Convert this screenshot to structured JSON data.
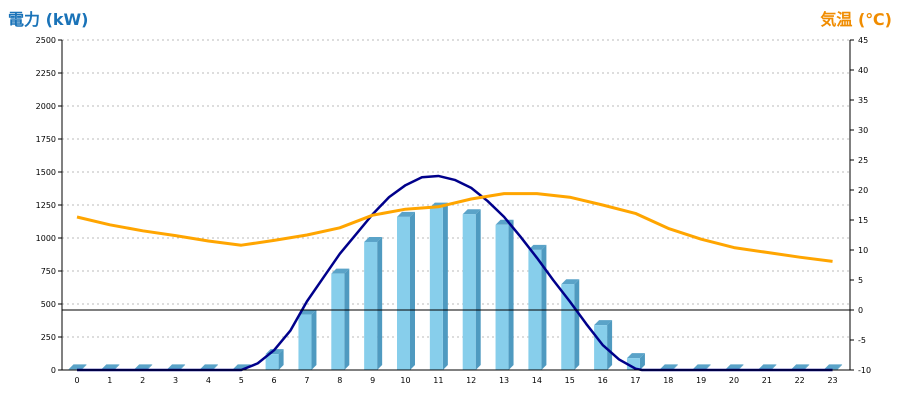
{
  "left_axis_title": "電力 (kW)",
  "right_axis_title": "気温 (℃)",
  "colors": {
    "left_title": "#1a73b8",
    "right_title": "#f08c00",
    "bar_front": "#87ceeb",
    "bar_side": "#4f9ac0",
    "bar_top": "#5aa3c8",
    "power_line": "#00008b",
    "temperature_line": "#ffa500",
    "grid": "#bbbbbb"
  },
  "chart_data": {
    "type": "bar",
    "categories": [
      "0",
      "1",
      "2",
      "3",
      "4",
      "5",
      "6",
      "7",
      "8",
      "9",
      "10",
      "11",
      "12",
      "13",
      "14",
      "15",
      "16",
      "17",
      "18",
      "19",
      "20",
      "21",
      "22",
      "23"
    ],
    "x_tick_labels": [
      "0",
      "1",
      "2",
      "3",
      "4",
      "5",
      "6",
      "7",
      "8",
      "9",
      "10",
      "11",
      "12",
      "13",
      "14",
      "15",
      "16",
      "17",
      "18",
      "19",
      "20",
      "21",
      "22",
      "23"
    ],
    "left_axis": {
      "range": [
        0,
        2500
      ],
      "tick_labels": [
        "0",
        "250",
        "500",
        "750",
        "1000",
        "1250",
        "1500",
        "1750",
        "2000",
        "2250",
        "2500"
      ]
    },
    "right_axis": {
      "range": [
        -10,
        45
      ],
      "tick_labels": [
        "-10",
        "-5",
        "0",
        "5",
        "10",
        "15",
        "20",
        "25",
        "30",
        "35",
        "40",
        "45"
      ]
    },
    "grid": true,
    "series": [
      {
        "type": "bar",
        "axis": "left",
        "values": [
          5,
          5,
          5,
          5,
          5,
          5,
          120,
          420,
          730,
          970,
          1160,
          1230,
          1180,
          1100,
          910,
          650,
          340,
          90,
          5,
          5,
          5,
          5,
          5,
          5
        ]
      },
      {
        "type": "line",
        "axis": "left",
        "x": [
          0,
          5,
          5.5,
          6,
          6.5,
          7,
          7.5,
          8,
          8.5,
          9,
          9.5,
          10,
          10.5,
          11,
          11.5,
          12,
          12.5,
          13,
          13.5,
          14,
          14.5,
          15,
          15.5,
          16,
          16.5,
          17,
          17.2,
          23
        ],
        "values": [
          0,
          0,
          50,
          150,
          300,
          520,
          700,
          880,
          1030,
          1180,
          1310,
          1400,
          1460,
          1470,
          1440,
          1380,
          1280,
          1160,
          1010,
          850,
          680,
          520,
          350,
          190,
          80,
          10,
          0,
          0
        ]
      },
      {
        "type": "line",
        "axis": "right",
        "values": [
          15.5,
          14.2,
          13.2,
          12.4,
          11.5,
          10.8,
          11.6,
          12.5,
          13.7,
          15.8,
          16.8,
          17.2,
          18.5,
          19.4,
          19.4,
          18.8,
          17.5,
          16.1,
          13.6,
          11.8,
          10.4,
          9.6,
          8.8,
          8.1
        ]
      }
    ]
  }
}
